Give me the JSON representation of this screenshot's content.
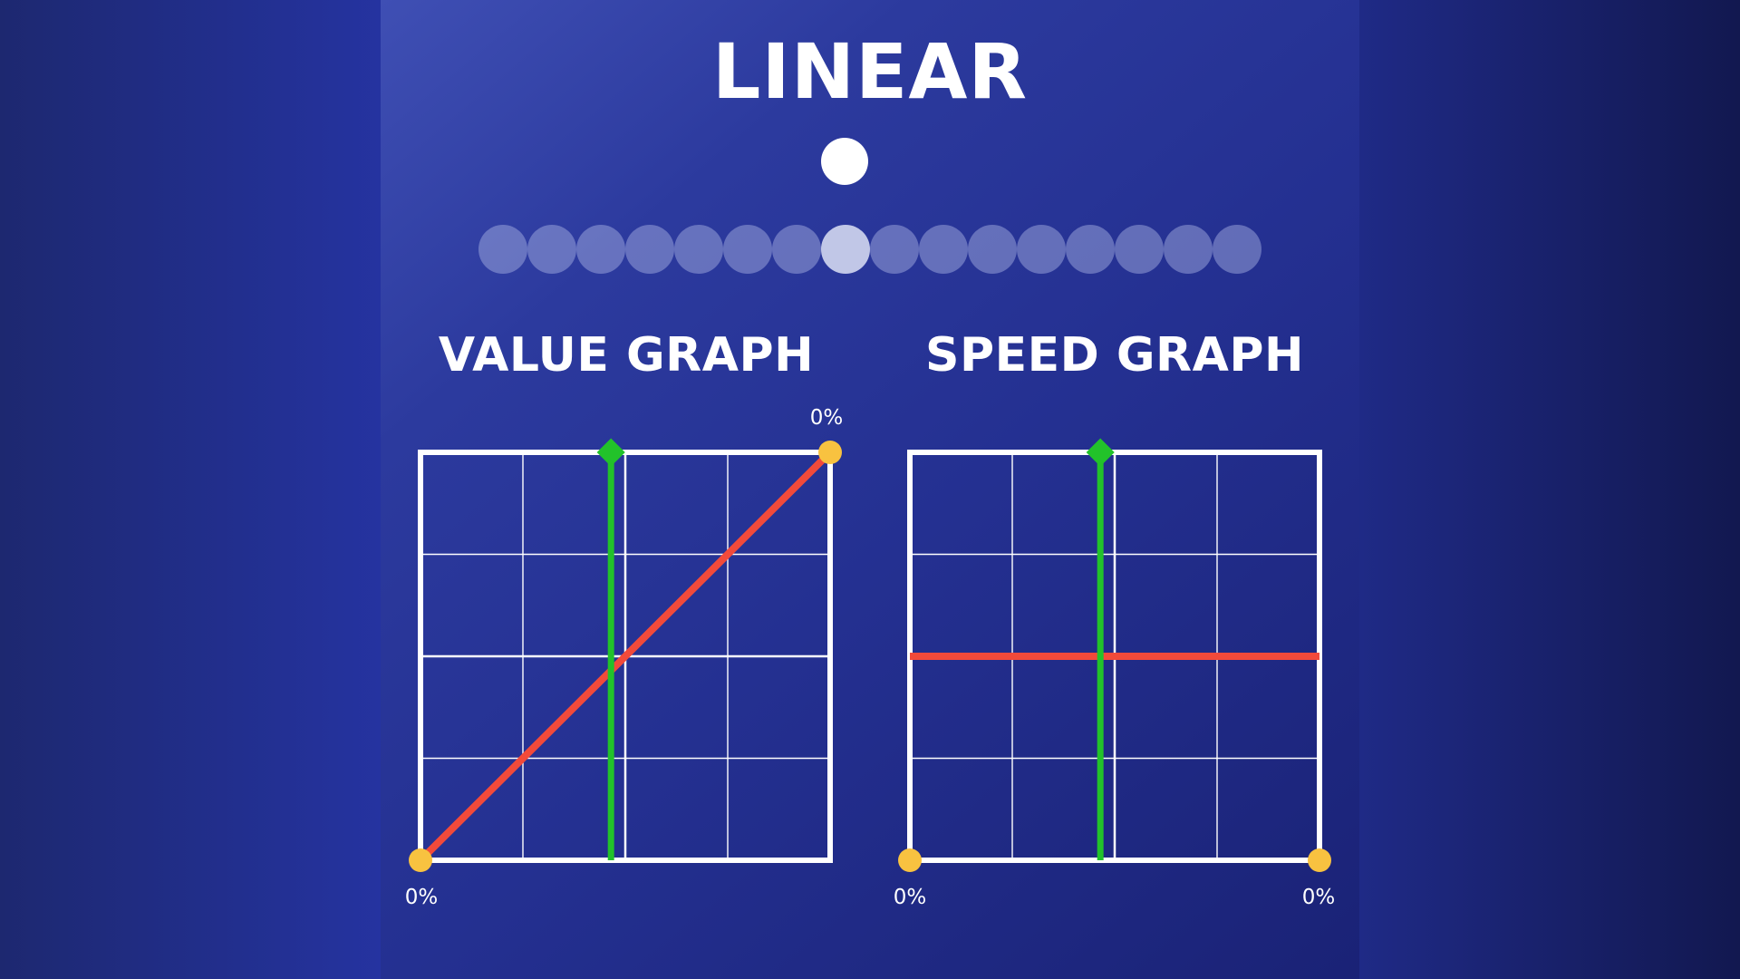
{
  "title": "LINEAR",
  "graphs": {
    "value": {
      "title": "VALUE GRAPH",
      "labels": {
        "bottom_left": "0%",
        "top_right": "0%"
      }
    },
    "speed": {
      "title": "SPEED GRAPH",
      "labels": {
        "bottom_left": "0%",
        "bottom_right": "0%"
      }
    }
  },
  "dots": {
    "count": 16,
    "active_index": 7
  },
  "playhead_progress": 0.465,
  "colors": {
    "curve": "#f24a3a",
    "playhead": "#22c22a",
    "keyframe": "#f8c240",
    "grid": "#ffffff"
  },
  "chart_data": [
    {
      "type": "line",
      "title": "VALUE GRAPH",
      "series": [
        {
          "x": [
            0,
            1
          ],
          "y": [
            0,
            1
          ]
        }
      ],
      "xlim": [
        0,
        1
      ],
      "ylim": [
        0,
        1
      ],
      "grid": true,
      "point_labels": [
        "0%",
        "0%"
      ]
    },
    {
      "type": "line",
      "title": "SPEED GRAPH",
      "series": [
        {
          "x": [
            0,
            1
          ],
          "y": [
            0.5,
            0.5
          ]
        }
      ],
      "xlim": [
        0,
        1
      ],
      "ylim": [
        0,
        1
      ],
      "grid": true,
      "point_labels": [
        "0%",
        "0%"
      ]
    }
  ]
}
